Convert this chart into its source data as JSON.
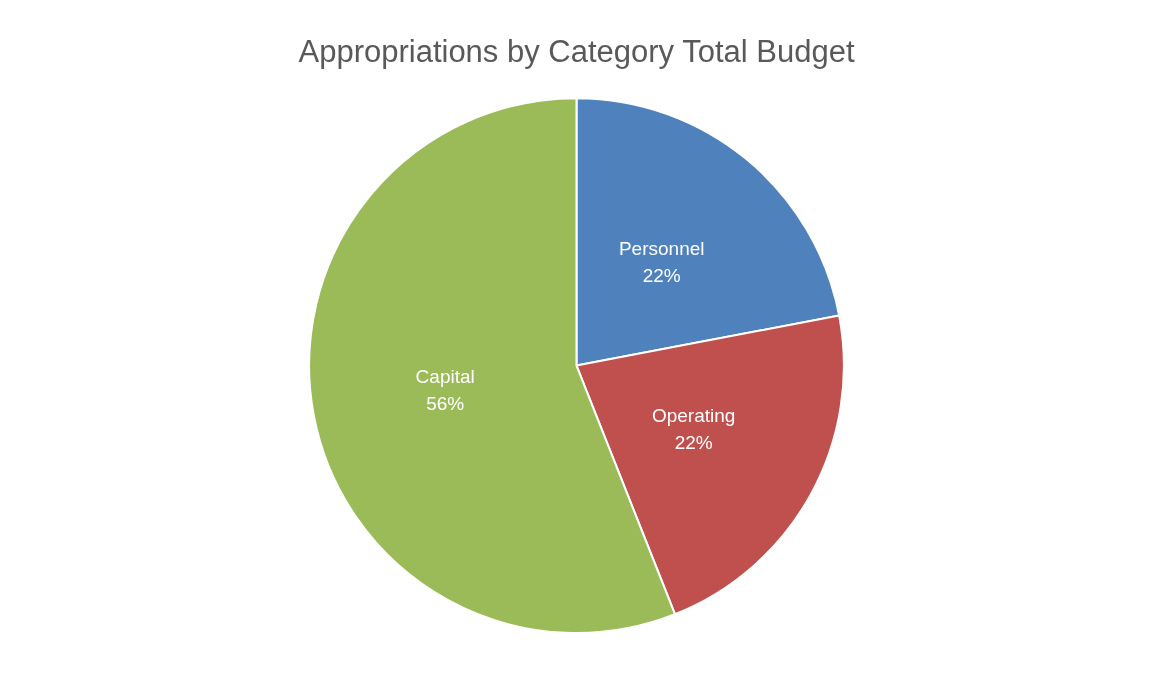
{
  "chart_data": {
    "type": "pie",
    "title": "Appropriations by Category Total Budget",
    "categories": [
      "Personnel",
      "Operating",
      "Capital"
    ],
    "values": [
      22,
      22,
      56
    ],
    "value_labels": [
      "22%",
      "22%",
      "56%"
    ],
    "colors": [
      "#4f81bd",
      "#c0504d",
      "#9bbb59"
    ]
  }
}
